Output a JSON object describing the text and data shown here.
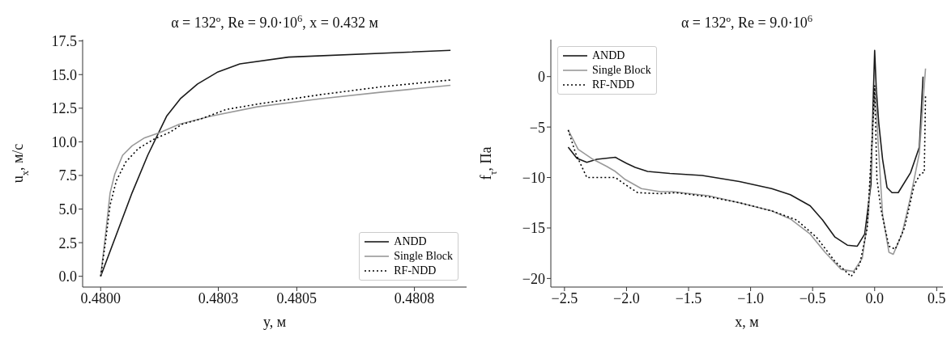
{
  "chart_data": [
    {
      "type": "line",
      "title": "α = 132º, Re = 9.0·10$^{6}$, x = 0.432 м",
      "xlabel": "y, м",
      "ylabel": "u$_{x}$, м/с",
      "legend": "bottom right",
      "xlim": [
        0.479954,
        0.480933
      ],
      "xticks": [
        {
          "value": 0.48,
          "label": "0.4800"
        },
        {
          "value": 0.4803,
          "label": "0.4803"
        },
        {
          "value": 0.4805,
          "label": "0.4805"
        },
        {
          "value": 0.4808,
          "label": "0.4808"
        }
      ],
      "ylim": [
        -0.8,
        17.6
      ],
      "yticks": [
        {
          "value": 0,
          "label": "0.0"
        },
        {
          "value": 2.5,
          "label": "2.5"
        },
        {
          "value": 5,
          "label": "5.0"
        },
        {
          "value": 7.5,
          "label": "7.5"
        },
        {
          "value": 10,
          "label": "10.0"
        },
        {
          "value": 12.5,
          "label": "12.5"
        },
        {
          "value": 15,
          "label": "15.0"
        },
        {
          "value": 17.5,
          "label": "17.5"
        }
      ],
      "series": [
        {
          "name": "ANDD",
          "color": "#1a1a1a",
          "line_style": "solid",
          "x": [
            0.48,
            0.48008,
            0.48012,
            0.480168,
            0.480203,
            0.480247,
            0.480299,
            0.480355,
            0.480479,
            0.480892
          ],
          "values": [
            0,
            6.2,
            9.0,
            11.9,
            13.2,
            14.3,
            15.2,
            15.8,
            16.3,
            16.8
          ]
        },
        {
          "name": "Single Block",
          "color": "#999999",
          "line_style": "solid",
          "x": [
            0.48,
            0.480012,
            0.480024,
            0.480036,
            0.480056,
            0.48008,
            0.480112,
            0.480152,
            0.4802,
            0.48028,
            0.480399,
            0.480558,
            0.480718,
            0.480892
          ],
          "values": [
            0,
            3.0,
            6.2,
            7.6,
            9.0,
            9.7,
            10.3,
            10.7,
            11.3,
            11.9,
            12.6,
            13.2,
            13.7,
            14.2
          ]
        },
        {
          "name": "RF-NDD",
          "color": "#000000",
          "line_style": "dotted",
          "x": [
            0.48,
            0.480012,
            0.480024,
            0.48004,
            0.480064,
            0.480096,
            0.480136,
            0.480176,
            0.480207,
            0.480255,
            0.480319,
            0.480399,
            0.480558,
            0.480718,
            0.480892
          ],
          "values": [
            0,
            2.5,
            5.3,
            7.1,
            8.5,
            9.5,
            10.2,
            10.7,
            11.3,
            11.7,
            12.4,
            12.8,
            13.5,
            14.1,
            14.6
          ]
        }
      ]
    },
    {
      "type": "line",
      "title": "α = 132º, Re = 9.0·10$^{6}$",
      "xlabel": "x, м",
      "ylabel": "f$_{τ}$, Па",
      "legend": "top left",
      "xlim": [
        -2.61,
        0.55
      ],
      "xticks": [
        {
          "value": -2.5,
          "label": "−2.5"
        },
        {
          "value": -2,
          "label": "−2.0"
        },
        {
          "value": -1.5,
          "label": "−1.5"
        },
        {
          "value": -1,
          "label": "−1.0"
        },
        {
          "value": -0.5,
          "label": "−0.5"
        },
        {
          "value": 0,
          "label": "0.0"
        },
        {
          "value": 0.5,
          "label": "0.5"
        }
      ],
      "ylim": [
        -20.85,
        3.66
      ],
      "yticks": [
        {
          "value": -20,
          "label": "−20"
        },
        {
          "value": -15,
          "label": "−15"
        },
        {
          "value": -10,
          "label": "−10"
        },
        {
          "value": -5,
          "label": "−5"
        },
        0
      ],
      "series": [
        {
          "name": "ANDD",
          "color": "#1a1a1a",
          "line_style": "solid",
          "x": [
            -2.47,
            -2.4,
            -2.32,
            -2.24,
            -2.09,
            -2.0,
            -1.93,
            -1.83,
            -1.65,
            -1.39,
            -1.09,
            -0.83,
            -0.68,
            -0.52,
            -0.42,
            -0.32,
            -0.22,
            -0.14,
            -0.08,
            -0.03,
            -0.01,
            0,
            0.013,
            0.033,
            0.064,
            0.1,
            0.14,
            0.19,
            0.29,
            0.36,
            0.39
          ],
          "values": [
            -7.0,
            -8.1,
            -8.5,
            -8.2,
            -8.0,
            -8.6,
            -9.0,
            -9.4,
            -9.6,
            -9.8,
            -10.4,
            -11.1,
            -11.7,
            -12.8,
            -14.2,
            -15.9,
            -16.7,
            -16.8,
            -15.6,
            -10.7,
            -1.5,
            2.6,
            -1.2,
            -4.6,
            -8.2,
            -11.0,
            -11.5,
            -11.5,
            -9.5,
            -7.0,
            0
          ]
        },
        {
          "name": "Single Block",
          "color": "#999999",
          "line_style": "solid",
          "x": [
            -2.47,
            -2.39,
            -2.27,
            -2.16,
            -2.09,
            -2.01,
            -1.88,
            -1.73,
            -1.63,
            -1.34,
            -1.09,
            -0.83,
            -0.68,
            -0.52,
            -0.4,
            -0.27,
            -0.17,
            -0.1,
            -0.05,
            -0.013,
            0.005,
            0.026,
            0.064,
            0.115,
            0.15,
            0.22,
            0.29,
            0.36,
            0.41
          ],
          "values": [
            -5.3,
            -7.2,
            -8.2,
            -8.9,
            -9.4,
            -10.2,
            -11.1,
            -11.4,
            -11.4,
            -11.8,
            -12.5,
            -13.3,
            -14.1,
            -15.6,
            -17.4,
            -19.1,
            -19.3,
            -18.0,
            -13.7,
            -4.6,
            -1.2,
            -6.1,
            -13.7,
            -17.4,
            -17.6,
            -15.6,
            -11.9,
            -7.6,
            0.8
          ]
        },
        {
          "name": "RF-NDD",
          "color": "#000000",
          "line_style": "dotted",
          "x": [
            -2.47,
            -2.41,
            -2.32,
            -2.09,
            -2.01,
            -1.91,
            -1.73,
            -1.6,
            -1.34,
            -1.09,
            -0.83,
            -0.63,
            -0.47,
            -0.32,
            -0.19,
            -0.12,
            -0.06,
            -0.02,
            0,
            0.018,
            0.05,
            0.115,
            0.166,
            0.24,
            0.32,
            0.37,
            0.4,
            0.41
          ],
          "values": [
            -5.3,
            -7.6,
            -10.0,
            -10.0,
            -10.7,
            -11.5,
            -11.6,
            -11.5,
            -11.9,
            -12.5,
            -13.3,
            -14.2,
            -15.9,
            -18.3,
            -19.8,
            -18.6,
            -15.0,
            -6.1,
            -0.9,
            -10.1,
            -13.1,
            -16.8,
            -17.1,
            -15.0,
            -10.7,
            -9.6,
            -9.5,
            -1.8
          ]
        }
      ]
    }
  ]
}
